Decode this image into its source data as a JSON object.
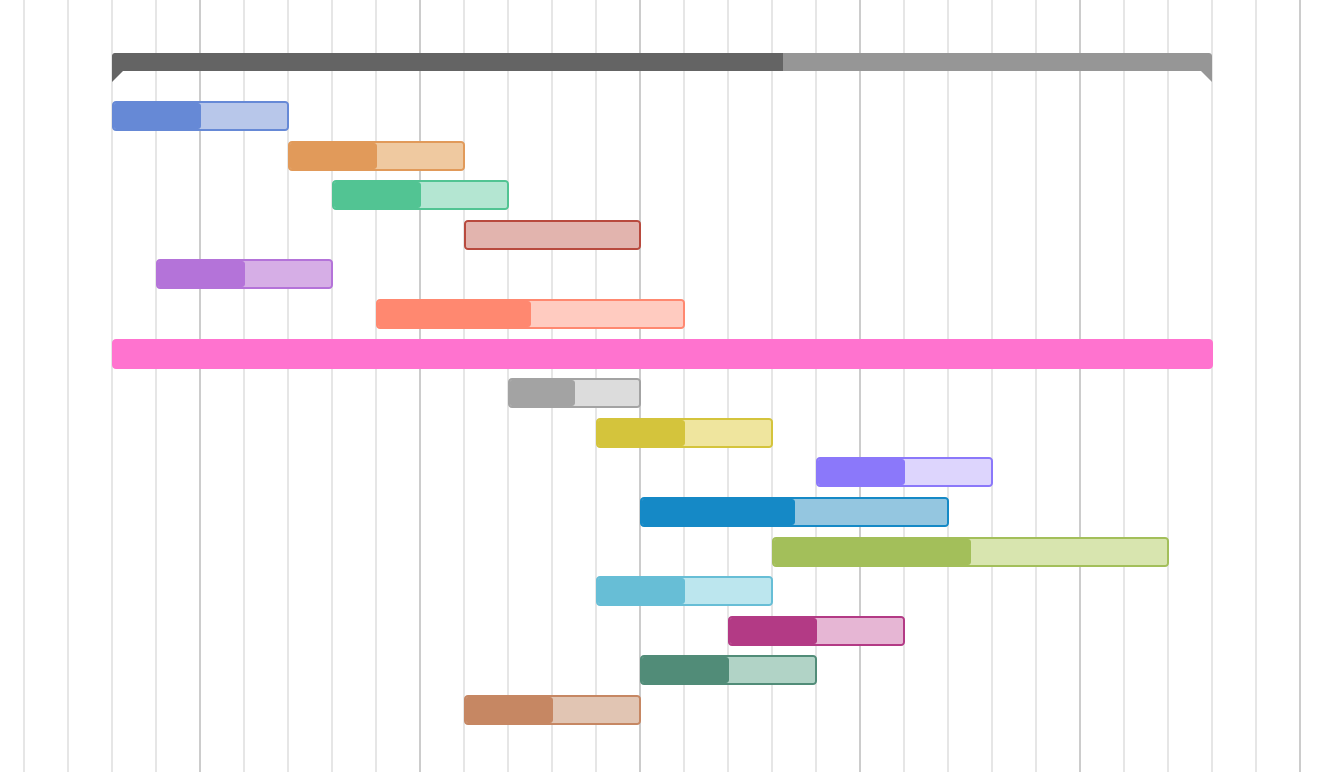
{
  "chart_data": {
    "type": "gantt",
    "x_unit": "day",
    "xlim": [
      -2,
      27
    ],
    "grid": true,
    "summary": {
      "start": 0,
      "duration": 25,
      "progress": 0.61,
      "color": "#969696",
      "progress_color": "#646464"
    },
    "tasks": [
      {
        "start": 0,
        "duration": 4,
        "progress": 0.5,
        "color": "#6689d6",
        "light": "#b8c7ea"
      },
      {
        "start": 4,
        "duration": 4,
        "progress": 0.5,
        "color": "#e19a5a",
        "light": "#efc9a0"
      },
      {
        "start": 5,
        "duration": 4,
        "progress": 0.5,
        "color": "#52c493",
        "light": "#b4e6d2"
      },
      {
        "start": 8,
        "duration": 4,
        "progress": 0.0,
        "color": "#b84a3e",
        "light": "#e2b4ae"
      },
      {
        "start": 1,
        "duration": 4,
        "progress": 0.5,
        "color": "#b473d9",
        "light": "#d6aee6"
      },
      {
        "start": 6,
        "duration": 7,
        "progress": 0.5,
        "color": "#ff8870",
        "light": "#ffcbc0"
      },
      {
        "start": 0,
        "duration": 25,
        "progress": 1.0,
        "color": "#ff73cf",
        "light": "#ffc6ec"
      },
      {
        "start": 9,
        "duration": 3,
        "progress": 0.5,
        "color": "#a3a3a3",
        "light": "#dcdcdc"
      },
      {
        "start": 11,
        "duration": 4,
        "progress": 0.5,
        "color": "#d4c43c",
        "light": "#efe59e"
      },
      {
        "start": 16,
        "duration": 4,
        "progress": 0.5,
        "color": "#8b78fa",
        "light": "#ddd5fd"
      },
      {
        "start": 12,
        "duration": 7,
        "progress": 0.5,
        "color": "#1589c6",
        "light": "#94c6e0"
      },
      {
        "start": 15,
        "duration": 9,
        "progress": 0.5,
        "color": "#a3bf5a",
        "light": "#d8e5af"
      },
      {
        "start": 11,
        "duration": 4,
        "progress": 0.5,
        "color": "#67bed6",
        "light": "#bce6ee"
      },
      {
        "start": 14,
        "duration": 4,
        "progress": 0.5,
        "color": "#b33a85",
        "light": "#e6b6d4"
      },
      {
        "start": 12,
        "duration": 4,
        "progress": 0.5,
        "color": "#518c78",
        "light": "#b1d3c6"
      },
      {
        "start": 8,
        "duration": 4,
        "progress": 0.5,
        "color": "#c68763",
        "light": "#e1c5b3"
      }
    ]
  }
}
